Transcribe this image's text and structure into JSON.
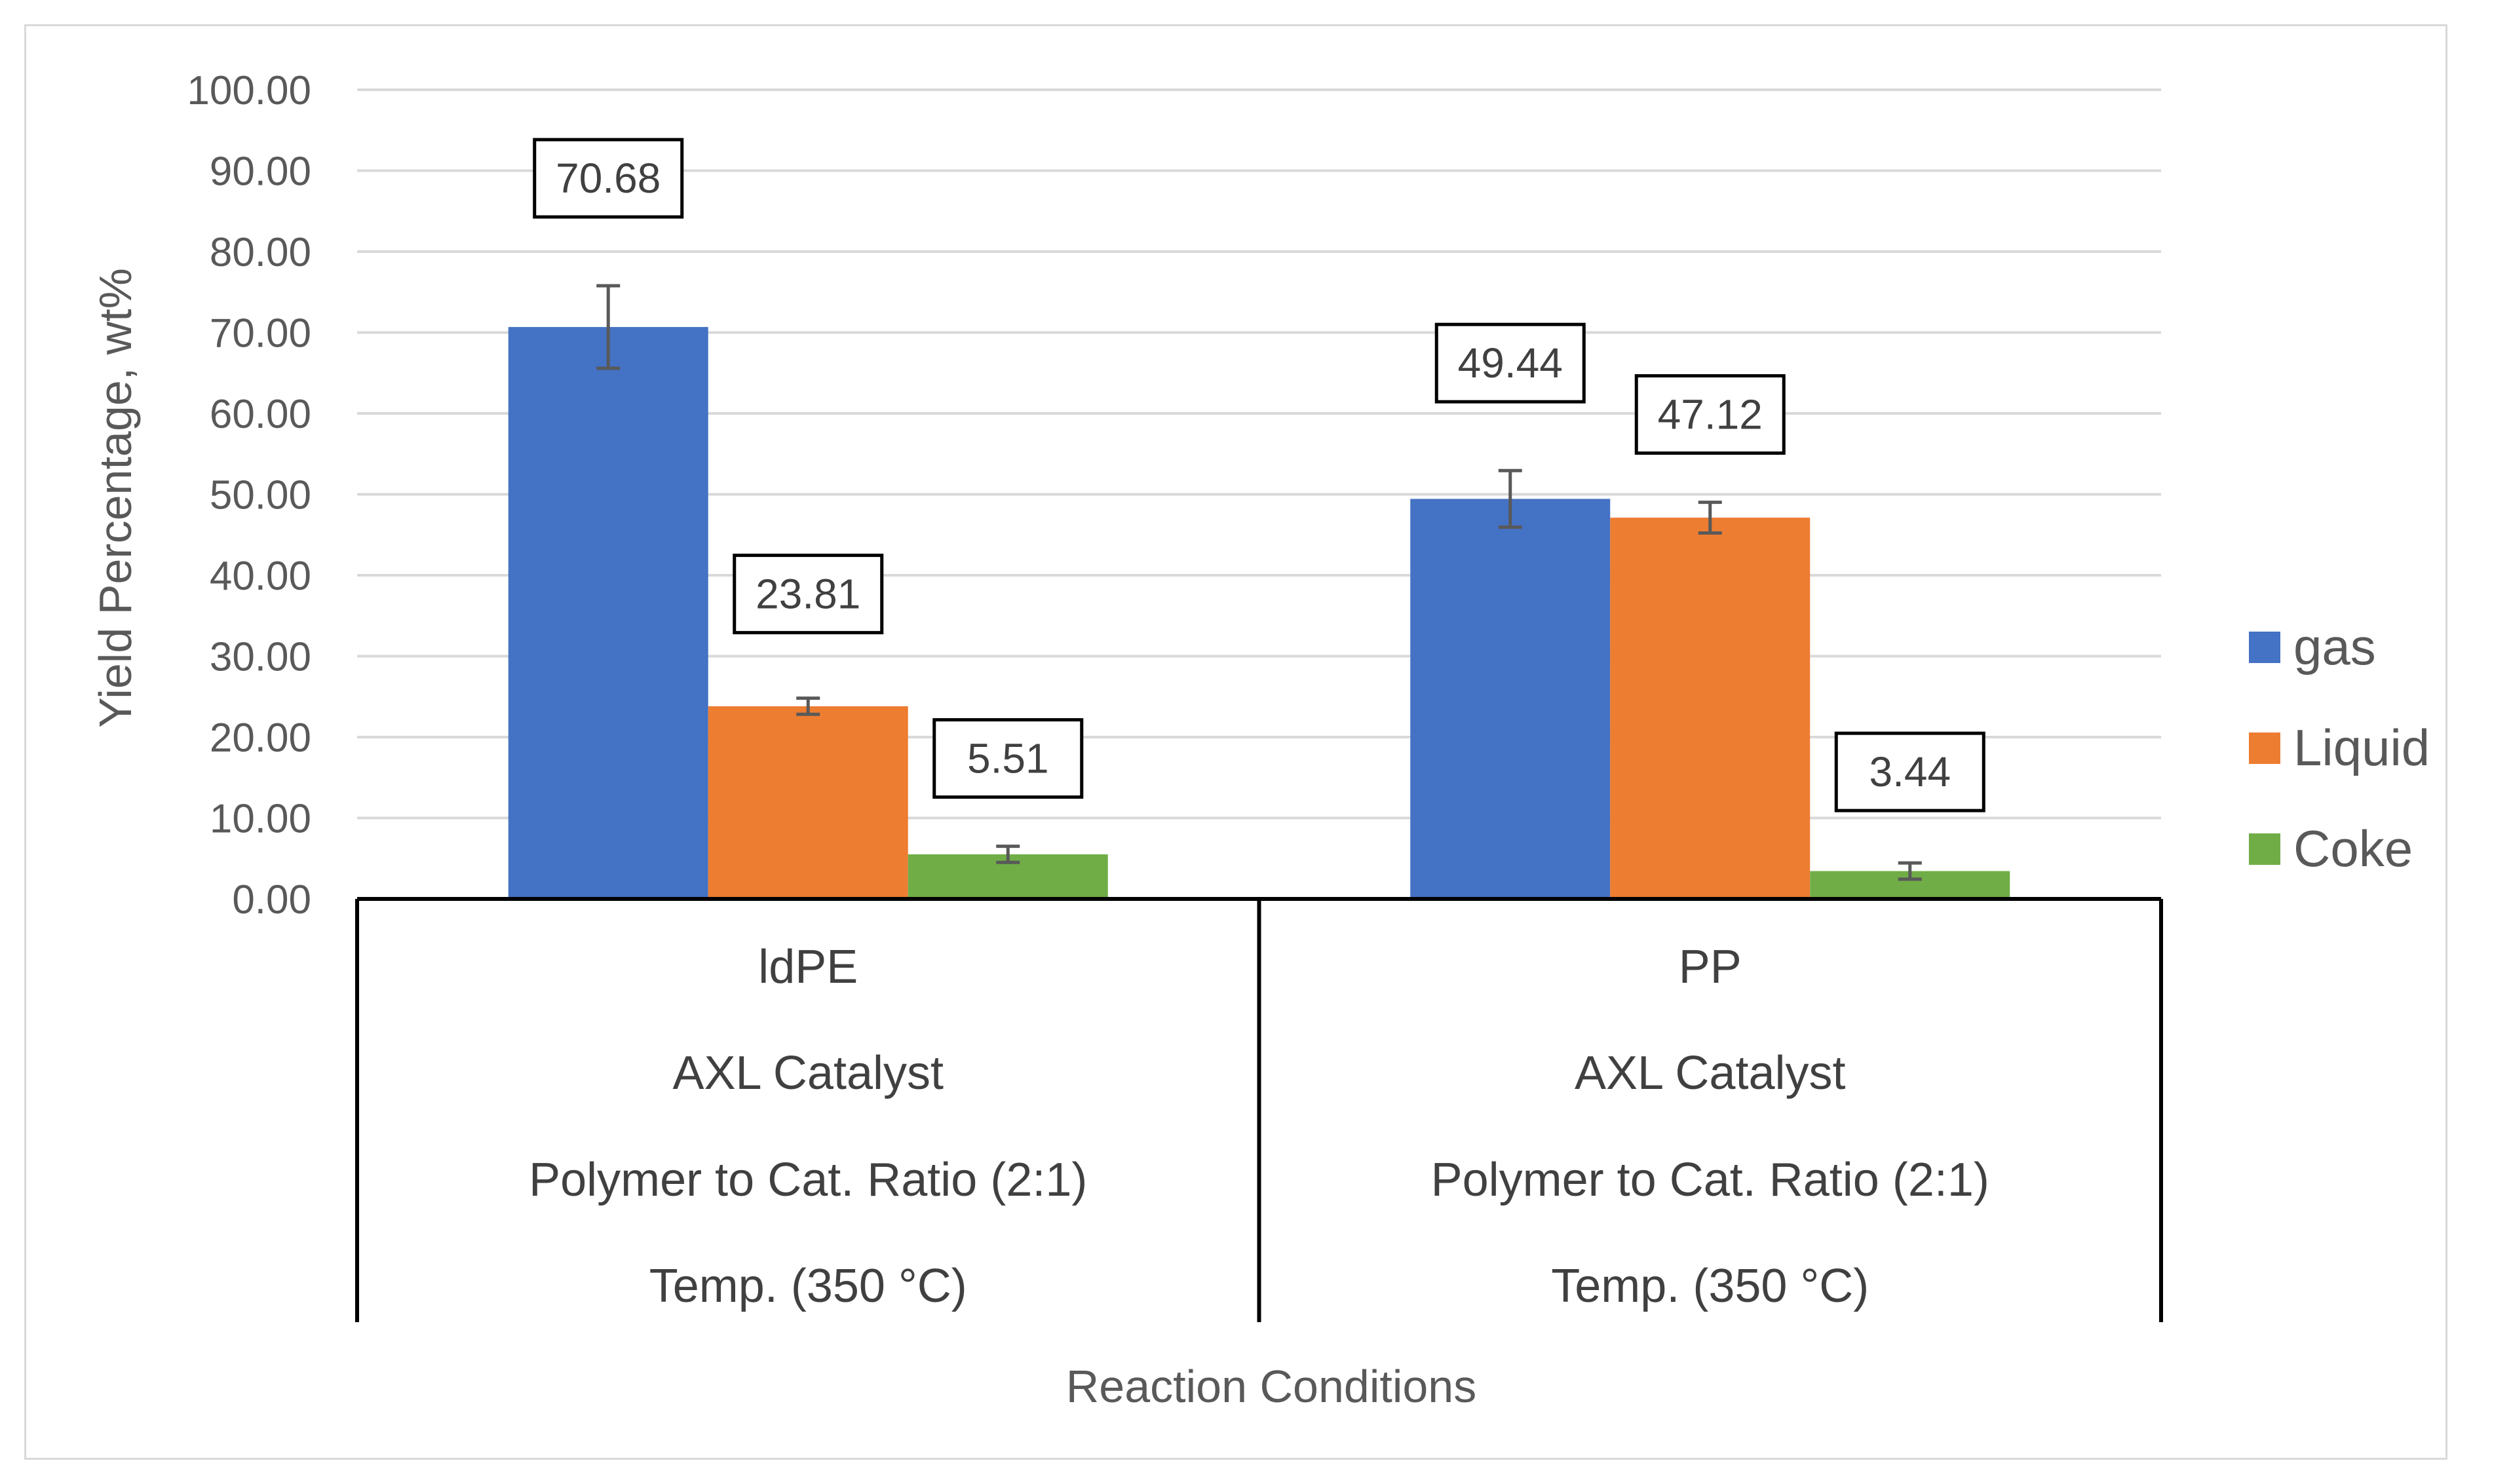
{
  "chart_data": {
    "type": "bar",
    "y_axis_title": "Yield Percentage, wt%",
    "x_axis_title": "Reaction Conditions",
    "ylim": [
      0,
      100
    ],
    "y_ticks": [
      "0.00",
      "10.00",
      "20.00",
      "30.00",
      "40.00",
      "50.00",
      "60.00",
      "70.00",
      "80.00",
      "90.00",
      "100.00"
    ],
    "categories": [
      {
        "lines": [
          "ldPE",
          "AXL Catalyst",
          "Polymer to Cat. Ratio (2:1)",
          "Temp. (350 °C)"
        ]
      },
      {
        "lines": [
          "PP",
          "AXL Catalyst",
          "Polymer to Cat. Ratio (2:1)",
          "Temp. (350 °C)"
        ]
      }
    ],
    "series": [
      {
        "name": "gas",
        "color": "#4472c4",
        "values": [
          70.68,
          49.44
        ],
        "labels": [
          "70.68",
          "49.44"
        ],
        "errors": [
          5.1,
          3.5
        ]
      },
      {
        "name": "Liquid",
        "color": "#ed7d31",
        "values": [
          23.81,
          47.12
        ],
        "labels": [
          "23.81",
          "47.12"
        ],
        "errors": [
          1.0,
          1.9
        ]
      },
      {
        "name": "Coke",
        "color": "#70ad47",
        "values": [
          5.51,
          3.44
        ],
        "labels": [
          "5.51",
          "3.44"
        ],
        "errors": [
          1.0,
          1.0
        ]
      }
    ],
    "grid": true,
    "legend": "right"
  }
}
